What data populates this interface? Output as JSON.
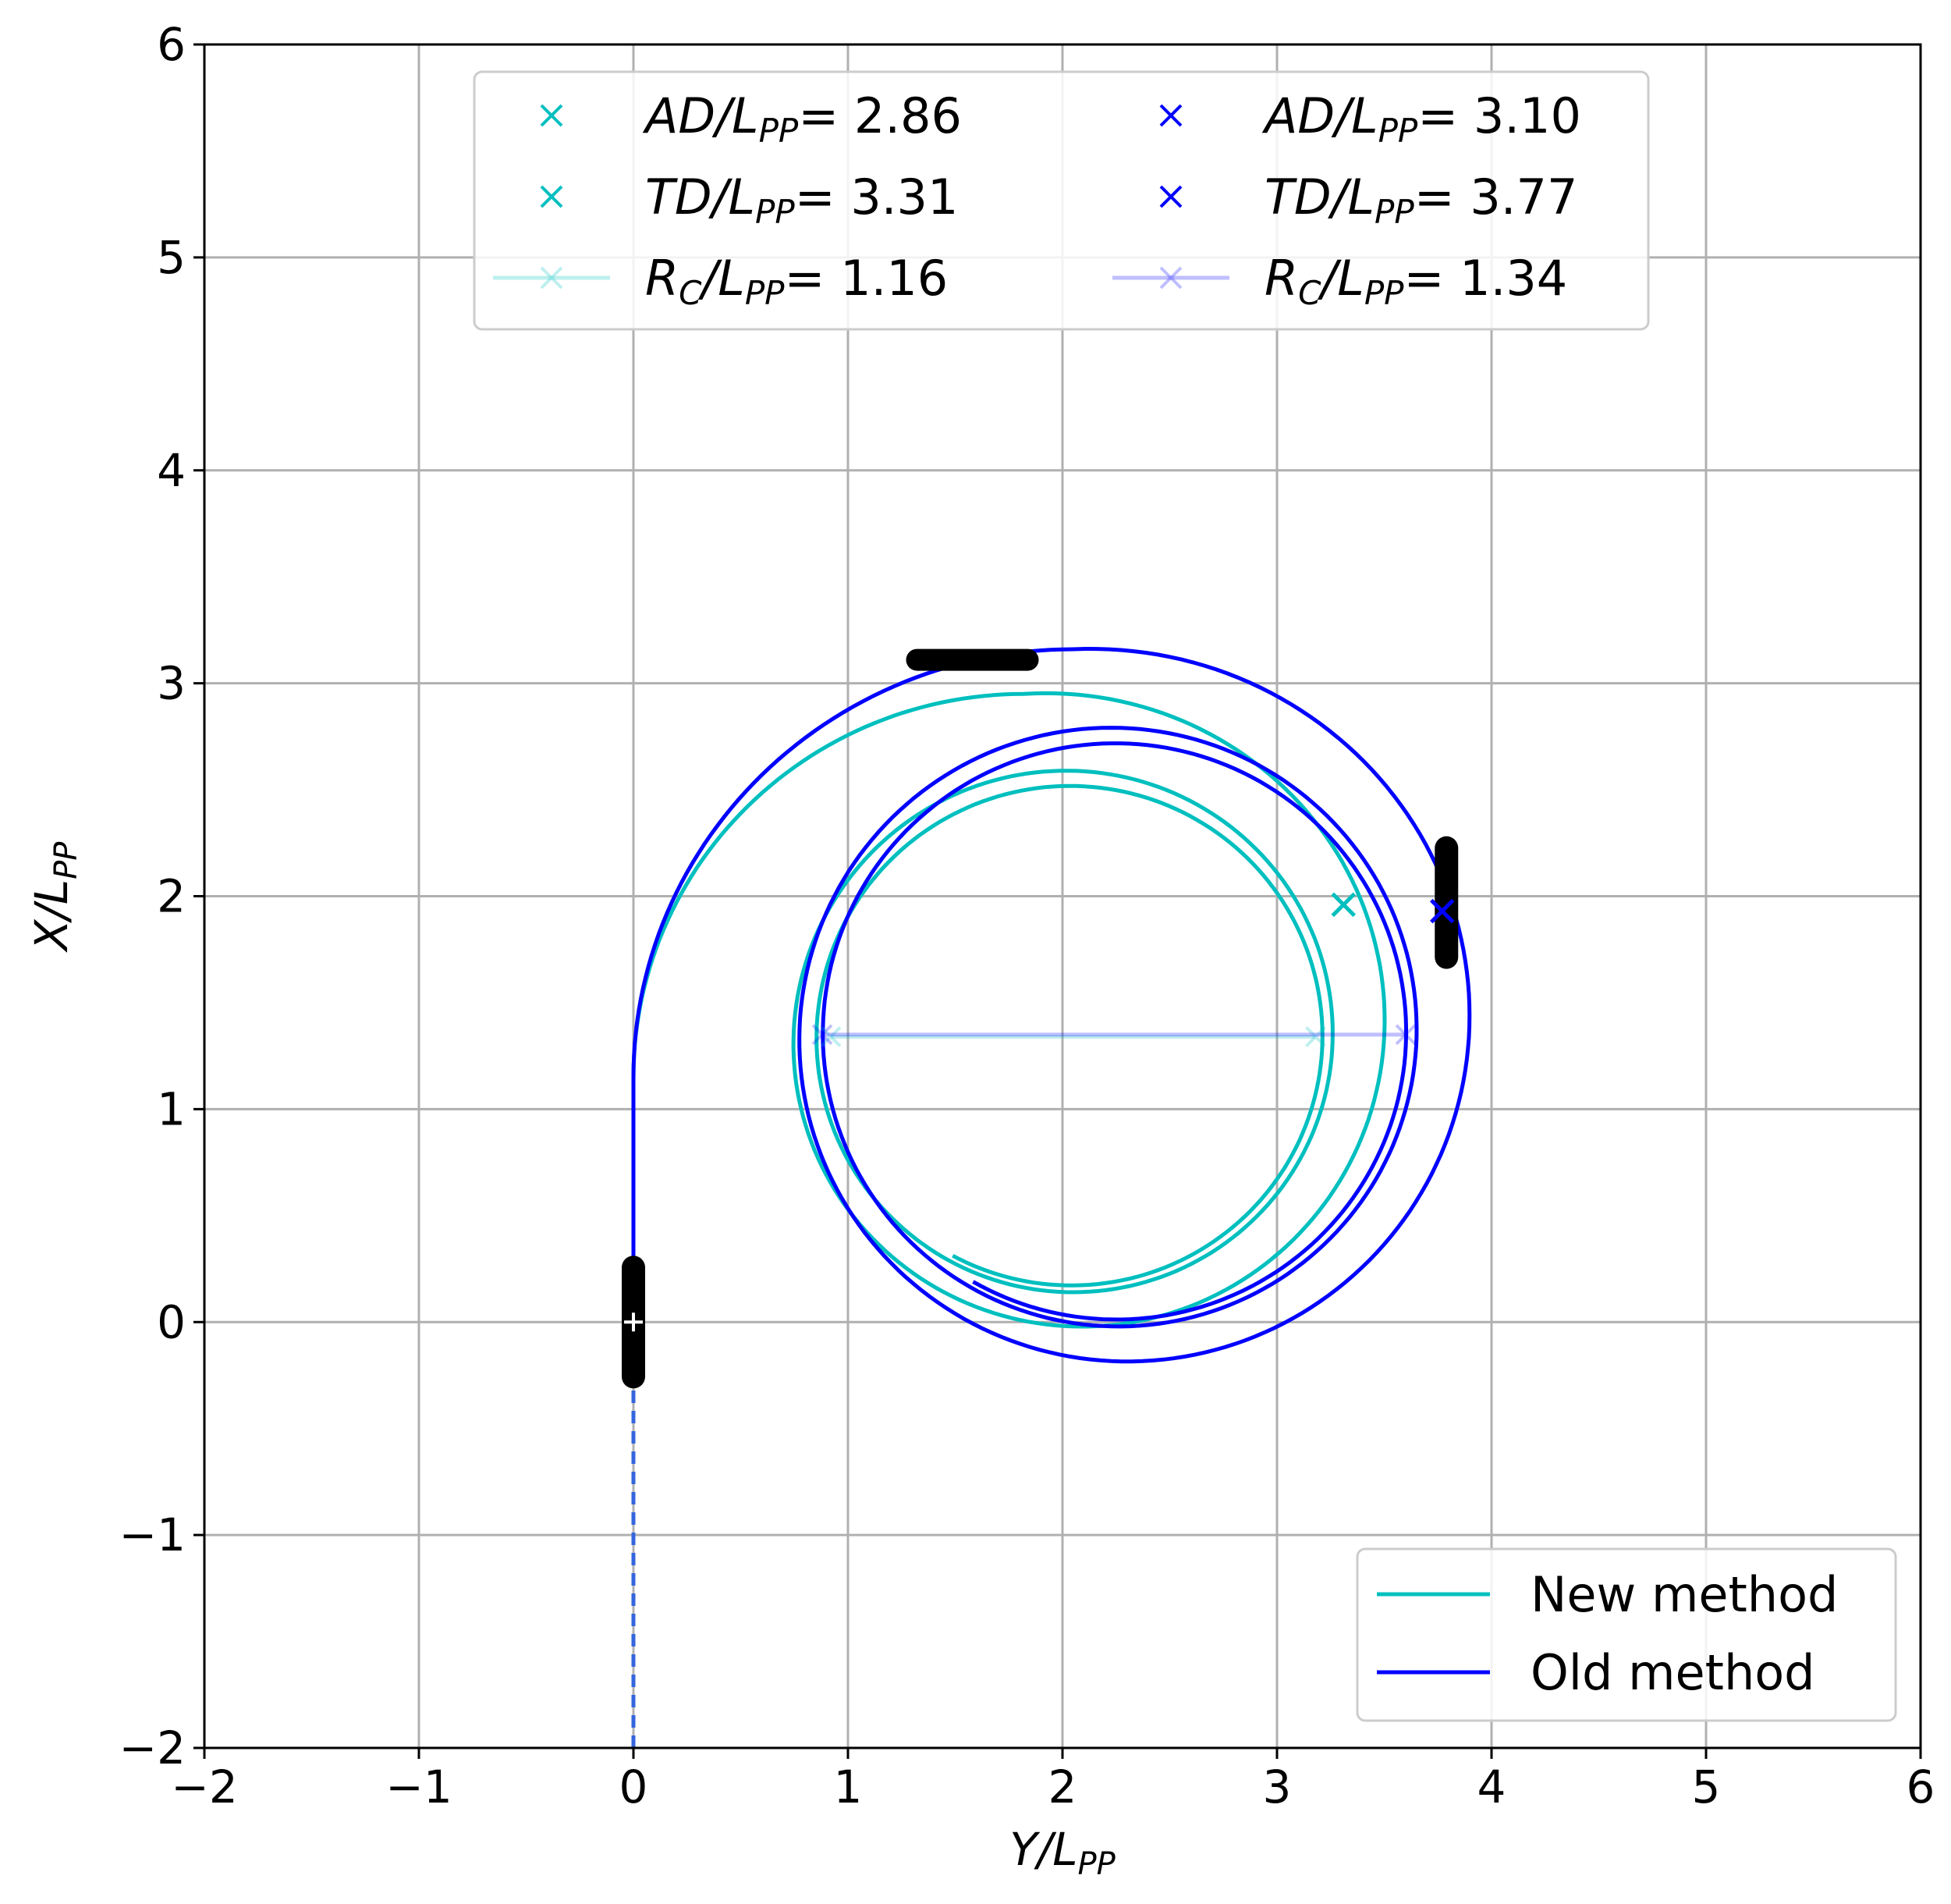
{
  "chart_data": {
    "type": "line",
    "xlabel": {
      "main": "Y/L",
      "sub": "PP"
    },
    "ylabel": {
      "main": "X/L",
      "sub": "PP"
    },
    "xlim": [
      -2,
      6
    ],
    "ylim": [
      -2,
      6
    ],
    "xticks": [
      "−2",
      "−1",
      "0",
      "1",
      "2",
      "3",
      "4",
      "5",
      "6"
    ],
    "yticks": [
      "−2",
      "−1",
      "0",
      "1",
      "2",
      "3",
      "4",
      "5",
      "6"
    ],
    "grid": true,
    "colors": {
      "new": "#00bfbf",
      "old": "#0000ff",
      "approach": "#3366dd",
      "ship": "#000000"
    },
    "series": [
      {
        "name": "New method",
        "color": "#00bfbf",
        "spiral": {
          "start": [
            0,
            1.15
          ],
          "apex": [
            1.82,
            2.95
          ],
          "settled_center": [
            2.04,
            1.34
          ],
          "settled_radius": 1.16,
          "transient_radius": 1.34
        }
      },
      {
        "name": "Old method",
        "color": "#0000ff",
        "spiral": {
          "start": [
            0,
            1.15
          ],
          "apex": [
            2.05,
            3.16
          ],
          "settled_center": [
            2.25,
            1.36
          ],
          "settled_radius": 1.34,
          "transient_radius": 1.58
        }
      }
    ],
    "approach_line": {
      "x": 0,
      "y_from": -2,
      "y_to": 0
    },
    "markers": [
      {
        "series": "New method",
        "label": "TD",
        "x": 3.31,
        "y": 1.96
      },
      {
        "series": "Old method",
        "label": "TD",
        "x": 3.77,
        "y": 1.93
      }
    ],
    "ships": [
      {
        "x": 0,
        "y": 0,
        "orientation": "vertical"
      },
      {
        "x": 1.58,
        "y": 3.11,
        "orientation": "horizontal"
      },
      {
        "x": 3.79,
        "y": 1.97,
        "orientation": "vertical"
      }
    ],
    "diameter_lines": [
      {
        "series": "New method",
        "x1": 0.92,
        "x2": 3.18,
        "y": 1.34
      },
      {
        "series": "Old method",
        "x1": 0.88,
        "x2": 3.6,
        "y": 1.35
      }
    ],
    "legend_top": {
      "placement": "top-center",
      "entries": [
        {
          "text_main": "AD/L",
          "text_sub": "PP",
          "value": "= 2.86",
          "color": "#00bfbf",
          "style": "marker"
        },
        {
          "text_main": "TD/L",
          "text_sub": "PP",
          "value": "= 3.31",
          "color": "#00bfbf",
          "style": "marker"
        },
        {
          "text_main": "R",
          "text_sub_c": "C",
          "text_mid": "/L",
          "text_sub": "PP",
          "value": "= 1.16",
          "color": "#00bfbf",
          "style": "faded"
        },
        {
          "text_main": "AD/L",
          "text_sub": "PP",
          "value": "= 3.10",
          "color": "#0000ff",
          "style": "marker"
        },
        {
          "text_main": "TD/L",
          "text_sub": "PP",
          "value": "= 3.77",
          "color": "#0000ff",
          "style": "marker"
        },
        {
          "text_main": "R",
          "text_sub_c": "C",
          "text_mid": "/L",
          "text_sub": "PP",
          "value": "= 1.34",
          "color": "#0000ff",
          "style": "faded"
        }
      ]
    },
    "legend_bottom": {
      "placement": "lower-right",
      "entries": [
        {
          "label": "New method",
          "color": "#00bfbf"
        },
        {
          "label": "Old method",
          "color": "#0000ff"
        }
      ]
    }
  }
}
